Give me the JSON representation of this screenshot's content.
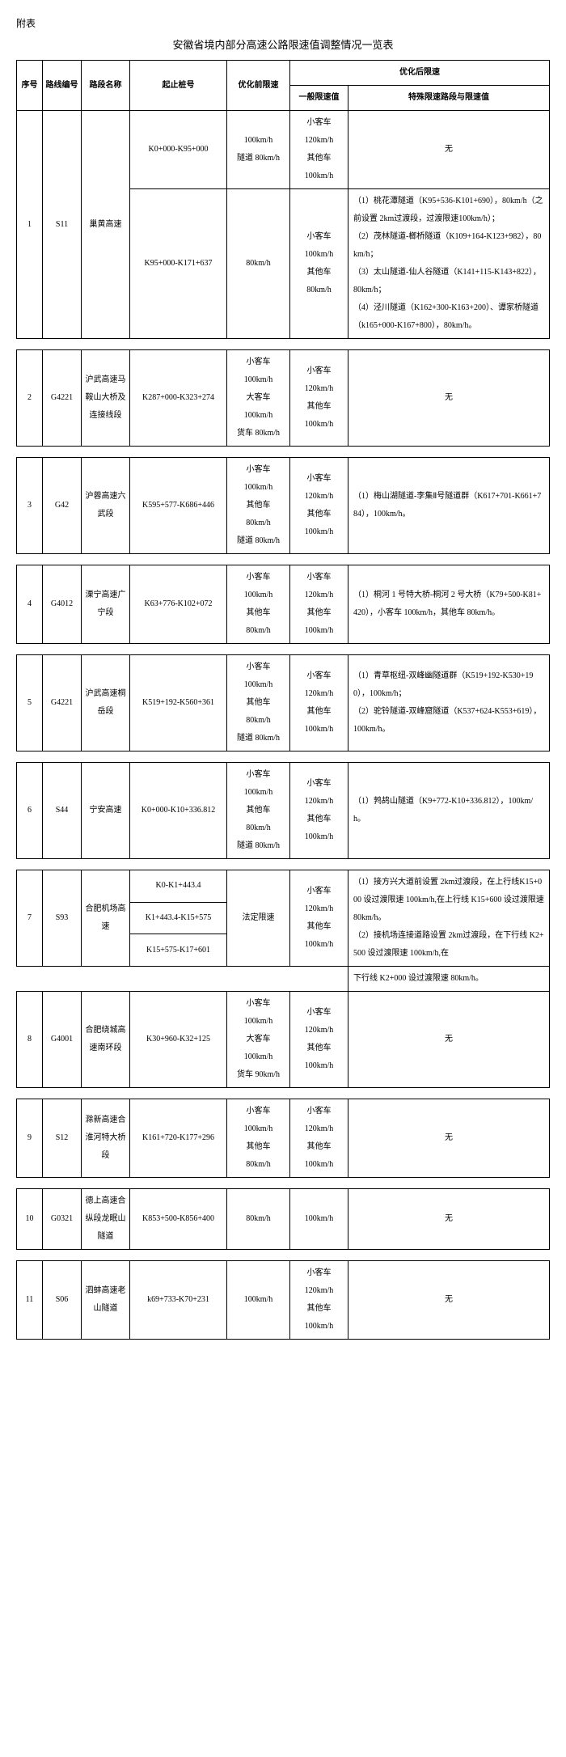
{
  "attachment": "附表",
  "title": "安徽省境内部分高速公路限速值调整情况一览表",
  "headers": {
    "seq": "序号",
    "code": "路线编号",
    "name": "路段名称",
    "stake": "起止桩号",
    "before": "优化前限速",
    "after": "优化后限速",
    "general": "一般限速值",
    "special": "特殊限速路段与限速值"
  },
  "rows": [
    {
      "seq": "1",
      "code": "S11",
      "name": "巢黄高速",
      "sub": [
        {
          "stake": "K0+000-K95+000",
          "before": "100km/h\n隧道 80km/h",
          "general": "小客车\n120km/h\n其他车\n100km/h",
          "special": "无"
        },
        {
          "stake": "K95+000-K171+637",
          "before": "80km/h",
          "general": "小客车\n100km/h\n其他车\n80km/h",
          "special": "（1）桃花潭隧道（K95+536-K101+690），80km/h（之前设置 2km过渡段，过渡限速100km/h）；\n（2）茂林隧道-榔桥隧道（K109+164-K123+982），80km/h；\n（3）太山隧道-仙人谷隧道（K141+115-K143+822），80km/h；\n（4）泾川隧道（K162+300-K163+200）、谭家桥隧道（k165+000-K167+800），80km/h。"
        }
      ]
    },
    {
      "seq": "2",
      "code": "G4221",
      "name": "沪武高速马鞍山大桥及连接线段",
      "sub": [
        {
          "stake": "K287+000-K323+274",
          "before": "小客车\n100km/h\n大客车\n100km/h\n货车 80km/h",
          "general": "小客车\n120km/h\n其他车\n100km/h",
          "special": "无"
        }
      ]
    },
    {
      "seq": "3",
      "code": "G42",
      "name": "沪蓉高速六武段",
      "sub": [
        {
          "stake": "K595+577-K686+446",
          "before": "小客车\n100km/h\n其他车\n80km/h\n隧道 80km/h",
          "general": "小客车\n120km/h\n其他车\n100km/h",
          "special": "（1）梅山湖隧道-李集Ⅱ号隧道群（K617+701-K661+784），100km/h。"
        }
      ]
    },
    {
      "seq": "4",
      "code": "G4012",
      "name": "溧宁高速广宁段",
      "sub": [
        {
          "stake": "K63+776-K102+072",
          "before": "小客车\n100km/h\n其他车\n80km/h",
          "general": "小客车\n120km/h\n其他车\n100km/h",
          "special": "（1）桐河 1 号特大桥-桐河 2 号大桥（K79+500-K81+420），小客车 100km/h，其他车 80km/h。"
        }
      ]
    },
    {
      "seq": "5",
      "code": "G4221",
      "name": "沪武高速桐岳段",
      "sub": [
        {
          "stake": "K519+192-K560+361",
          "before": "小客车\n100km/h\n其他车\n80km/h\n隧道 80km/h",
          "general": "小客车\n120km/h\n其他车\n100km/h",
          "special": "（1）青草枢纽-双峰幽隧道群（K519+192-K530+190），100km/h；\n（2）驼铃隧道-双峰窟隧道（K537+624-K553+619），100km/h。"
        }
      ]
    },
    {
      "seq": "6",
      "code": "S44",
      "name": "宁安高速",
      "sub": [
        {
          "stake": "K0+000-K10+336.812",
          "before": "小客车\n100km/h\n其他车\n80km/h\n隧道 80km/h",
          "general": "小客车\n120km/h\n其他车\n100km/h",
          "special": "（1）鹁鸪山隧道（K9+772-K10+336.812），100km/h。"
        }
      ]
    },
    {
      "seq": "7",
      "code": "S93",
      "name": "合肥机场高速",
      "stakes": [
        "K0-K1+443.4",
        "K1+443.4-K15+575",
        "K15+575-K17+601"
      ],
      "before": "法定限速",
      "general": "小客车\n120km/h\n其他车\n100km/h",
      "special": "（1）接方兴大道前设置 2km过渡段，在上行线K15+000 设过渡限速 100km/h,在上行线 K15+600 设过渡限速 80km/h。\n（2）接机场连接道路设置 2km过渡段，在下行线 K2+500 设过渡限速 100km/h,在",
      "extra": "下行线 K2+000 设过渡限速 80km/h。"
    },
    {
      "seq": "8",
      "code": "G4001",
      "name": "合肥绕城高速南环段",
      "sub": [
        {
          "stake": "K30+960-K32+125",
          "before": "小客车\n100km/h\n大客车\n100km/h\n货车 90km/h",
          "general": "小客车\n120km/h\n其他车\n100km/h",
          "special": "无"
        }
      ]
    },
    {
      "seq": "9",
      "code": "S12",
      "name": "滁新高速合淮河特大桥段",
      "sub": [
        {
          "stake": "K161+720-K177+296",
          "before": "小客车\n100km/h\n其他车\n80km/h",
          "general": "小客车\n120km/h\n其他车\n100km/h",
          "special": "无"
        }
      ]
    },
    {
      "seq": "10",
      "code": "G0321",
      "name": "德上高速合纵段龙眠山隧道",
      "sub": [
        {
          "stake": "K853+500-K856+400",
          "before": "80km/h",
          "general": "100km/h",
          "special": "无"
        }
      ]
    },
    {
      "seq": "11",
      "code": "S06",
      "name": "泗蚌高速老山隧道",
      "sub": [
        {
          "stake": "k69+733-K70+231",
          "before": "100km/h",
          "general": "小客车\n120km/h\n其他车\n100km/h",
          "special": "无"
        }
      ]
    }
  ]
}
